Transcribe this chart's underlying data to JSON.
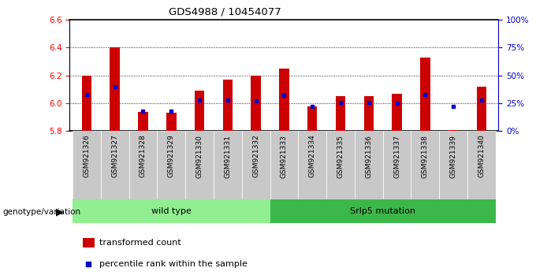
{
  "title": "GDS4988 / 10454077",
  "samples": [
    "GSM921326",
    "GSM921327",
    "GSM921328",
    "GSM921329",
    "GSM921330",
    "GSM921331",
    "GSM921332",
    "GSM921333",
    "GSM921334",
    "GSM921335",
    "GSM921336",
    "GSM921337",
    "GSM921338",
    "GSM921339",
    "GSM921340"
  ],
  "transformed_count": [
    6.2,
    6.4,
    5.94,
    5.93,
    6.09,
    6.17,
    6.2,
    6.25,
    5.98,
    6.05,
    6.05,
    6.07,
    6.33,
    5.81,
    6.12
  ],
  "percentile_rank": [
    33,
    40,
    18,
    18,
    28,
    28,
    27,
    32,
    22,
    26,
    26,
    25,
    33,
    22,
    28
  ],
  "base_value": 5.8,
  "ylim_left": [
    5.8,
    6.6
  ],
  "ylim_right": [
    0,
    100
  ],
  "yticks_left": [
    5.8,
    6.0,
    6.2,
    6.4,
    6.6
  ],
  "ytick_labels_right": [
    "0%",
    "25%",
    "50%",
    "75%",
    "100%"
  ],
  "yticks_right": [
    0,
    25,
    50,
    75,
    100
  ],
  "grid_lines": [
    6.0,
    6.2,
    6.4
  ],
  "wild_type_count": 7,
  "bar_color": "#CC0000",
  "dot_color": "#0000CC",
  "wild_type_color": "#90EE90",
  "mutation_color": "#3CB84A",
  "label_wild_type": "wild type",
  "label_mutation": "Srlp5 mutation",
  "legend_bar": "transformed count",
  "legend_dot": "percentile rank within the sample",
  "xlabel_label": "genotype/variation",
  "bg_color": "#FFFFFF",
  "tick_bg": "#C8C8C8",
  "bar_width": 0.35
}
